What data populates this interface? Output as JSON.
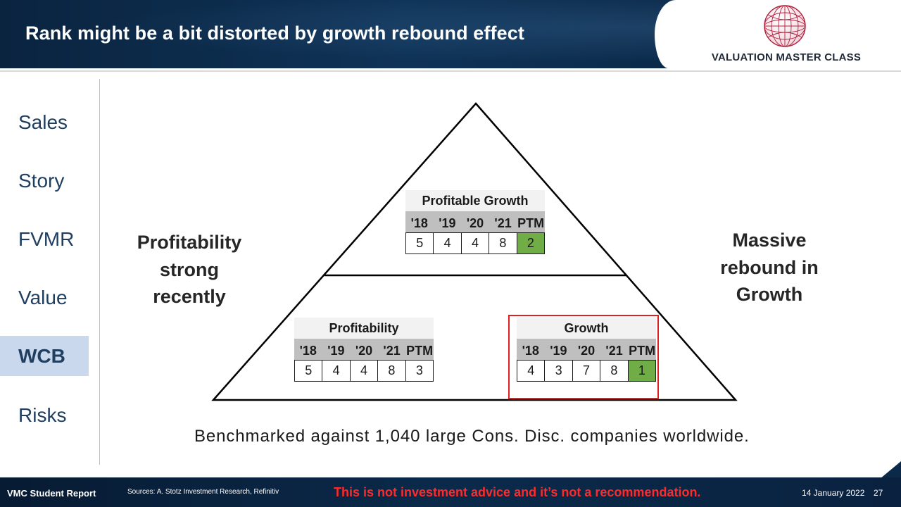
{
  "header": {
    "title": "Rank might be a bit distorted by growth rebound effect",
    "logo_text": "VALUATION MASTER CLASS",
    "logo_icon": "globe-icon"
  },
  "sidebar": {
    "items": [
      {
        "label": "Sales",
        "active": false
      },
      {
        "label": "Story",
        "active": false
      },
      {
        "label": "FVMR",
        "active": false
      },
      {
        "label": "Value",
        "active": false
      },
      {
        "label": "WCB",
        "active": true
      },
      {
        "label": "Risks",
        "active": false
      }
    ]
  },
  "main": {
    "left_text": [
      "Profitability",
      "strong",
      "recently"
    ],
    "right_text": [
      "Massive",
      "rebound in",
      "Growth"
    ],
    "tables": {
      "profitable_growth": {
        "title": "Profitable Growth",
        "years": [
          "'18",
          "'19",
          "'20",
          "'21",
          "PTM"
        ],
        "values": [
          "5",
          "4",
          "4",
          "8",
          "2"
        ],
        "highlight_index": 4
      },
      "profitability": {
        "title": "Profitability",
        "years": [
          "'18",
          "'19",
          "'20",
          "'21",
          "PTM"
        ],
        "values": [
          "5",
          "4",
          "4",
          "8",
          "3"
        ],
        "highlight_index": null
      },
      "growth": {
        "title": "Growth",
        "years": [
          "'18",
          "'19",
          "'20",
          "'21",
          "PTM"
        ],
        "values": [
          "4",
          "3",
          "7",
          "8",
          "1"
        ],
        "highlight_index": 4
      }
    },
    "benchmark": "Benchmarked against 1,040 large Cons. Disc. companies worldwide."
  },
  "footer": {
    "report": "VMC Student Report",
    "sources": "Sources: A. Stotz Investment Research, Refinitiv",
    "disclaimer": "This is not investment advice and it’s not a recommendation.",
    "date": "14 January 2022",
    "page": "27"
  },
  "colors": {
    "header_bg": "#0b2a4a",
    "active_sidebar": "#c9d8ec",
    "sidebar_text": "#1f3e60",
    "highlight_green": "#70ad47",
    "year_row": "#bfbfbf",
    "red_box": "#e02020",
    "disclaimer": "#ff2a2a"
  }
}
